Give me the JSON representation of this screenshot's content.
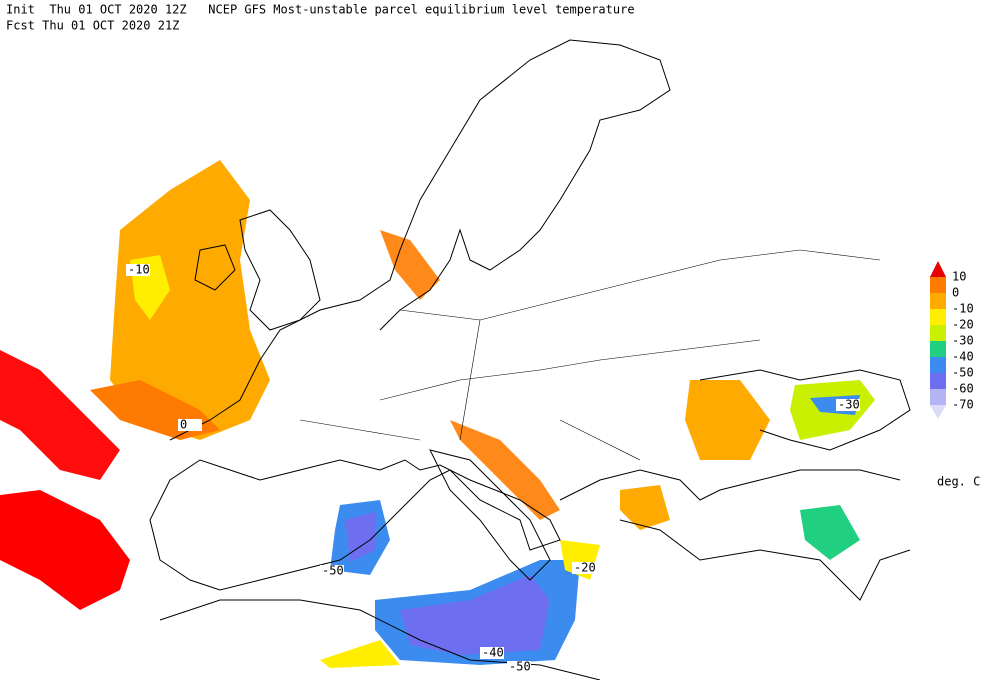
{
  "header": {
    "line1": "Init  Thu 01 OCT 2020 12Z   NCEP GFS Most-unstable parcel equilibrium level temperature",
    "line2": "Fcst Thu 01 OCT 2020 21Z"
  },
  "legend": {
    "labels": [
      "10",
      "0",
      "-10",
      "-20",
      "-30",
      "-40",
      "-50",
      "-60",
      "-70"
    ],
    "colors": [
      "#e60000",
      "#ff7a00",
      "#ffaa00",
      "#ffee00",
      "#c8f000",
      "#20d080",
      "#3c8cf0",
      "#6e6ef0",
      "#b4b4f5",
      "#dcdcfa"
    ],
    "unit": "deg. C"
  },
  "contour_labels": [
    "-10",
    "0",
    "-30",
    "-20",
    "-50",
    "-40",
    "-50"
  ]
}
